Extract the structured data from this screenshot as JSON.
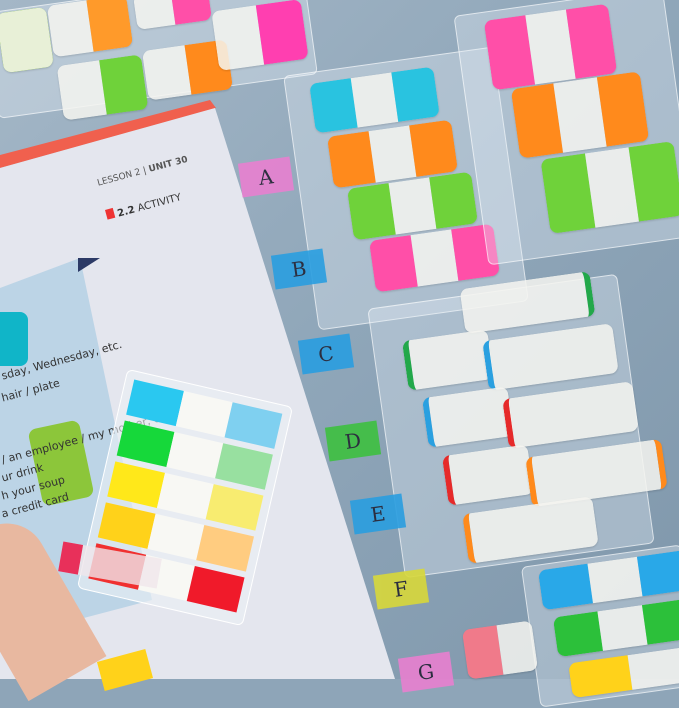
{
  "book": {
    "lesson": "LESSON 2",
    "unit": "UNIT 30",
    "activity_number": "2.2",
    "activity_label": "ACTIVITY",
    "lines": [
      "sday, Wednesday, etc.",
      "hair / plate",
      "/ an employee / my mother, etc.",
      "ur drink",
      "h your soup",
      "a credit card"
    ]
  },
  "index_tabs": [
    "A",
    "B",
    "C",
    "D",
    "E",
    "F",
    "G"
  ],
  "colors": {
    "cyan": "#29c3e0",
    "orange": "#ff8a1c",
    "green": "#6fd23a",
    "pink": "#ff4fa8",
    "red": "#ef2a2a",
    "yellow": "#ffe21a",
    "page": "#e4e6ee",
    "background": "#8fa6b9"
  }
}
